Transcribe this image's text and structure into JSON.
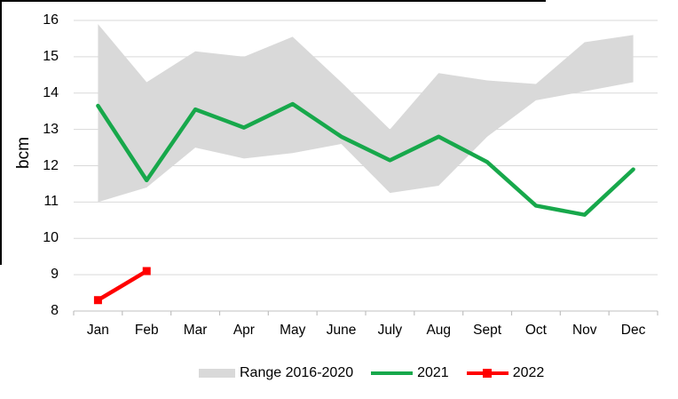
{
  "chart_data": {
    "type": "line",
    "title": "",
    "ylabel": "bcm",
    "ylim": [
      8,
      16
    ],
    "ytick_step": 1,
    "yticks": [
      "8",
      "9",
      "10",
      "11",
      "12",
      "13",
      "14",
      "15",
      "16"
    ],
    "categories": [
      "Jan",
      "Feb",
      "Mar",
      "Apr",
      "May",
      "June",
      "July",
      "Aug",
      "Sept",
      "Oct",
      "Nov",
      "Dec"
    ],
    "grid": "horizontal",
    "gridline_color": "#d9d9d9",
    "axis_line_color": "#c0c0c0",
    "text_color": "#000000",
    "legend_position": "bottom",
    "series": [
      {
        "name": "Range 2016-2020",
        "type": "band",
        "color": "#d9d9d9",
        "upper": [
          15.9,
          14.3,
          15.15,
          15.0,
          15.55,
          14.3,
          13.0,
          14.55,
          14.35,
          14.25,
          15.4,
          15.6
        ],
        "lower": [
          11.0,
          11.4,
          12.5,
          12.2,
          12.35,
          12.6,
          11.25,
          11.45,
          12.8,
          13.8,
          14.05,
          14.3
        ]
      },
      {
        "name": "2021",
        "type": "line",
        "color": "#17a84b",
        "values": [
          13.65,
          11.6,
          13.55,
          13.05,
          13.7,
          12.8,
          12.15,
          12.8,
          12.1,
          10.9,
          10.65,
          11.9
        ]
      },
      {
        "name": "2022",
        "type": "line-marker",
        "color": "#ff0000",
        "values": [
          8.3,
          9.1,
          null,
          null,
          null,
          null,
          null,
          null,
          null,
          null,
          null,
          null
        ]
      }
    ]
  }
}
